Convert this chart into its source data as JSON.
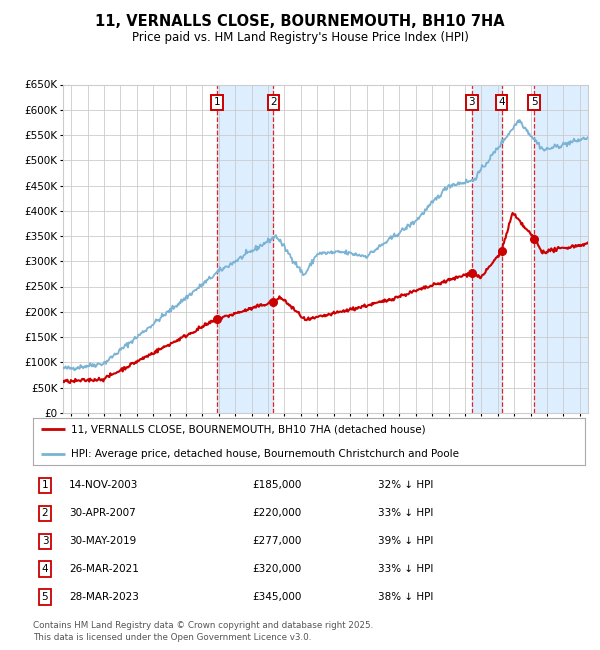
{
  "title": "11, VERNALLS CLOSE, BOURNEMOUTH, BH10 7HA",
  "subtitle": "Price paid vs. HM Land Registry's House Price Index (HPI)",
  "ylim": [
    0,
    650000
  ],
  "yticks": [
    0,
    50000,
    100000,
    150000,
    200000,
    250000,
    300000,
    350000,
    400000,
    450000,
    500000,
    550000,
    600000,
    650000
  ],
  "hpi_color": "#7ab3d4",
  "price_color": "#cc0000",
  "grid_color": "#cccccc",
  "bg_color": "#ffffff",
  "highlight_bg": "#ddeeff",
  "hatch_color": "#c0d0e0",
  "sale_events": [
    {
      "num": 1,
      "date": "14-NOV-2003",
      "price": 185000,
      "pct": "32%",
      "x_year": 2003.87
    },
    {
      "num": 2,
      "date": "30-APR-2007",
      "price": 220000,
      "pct": "33%",
      "x_year": 2007.33
    },
    {
      "num": 3,
      "date": "30-MAY-2019",
      "price": 277000,
      "pct": "39%",
      "x_year": 2019.41
    },
    {
      "num": 4,
      "date": "26-MAR-2021",
      "price": 320000,
      "pct": "33%",
      "x_year": 2021.23
    },
    {
      "num": 5,
      "date": "28-MAR-2023",
      "price": 345000,
      "pct": "38%",
      "x_year": 2023.23
    }
  ],
  "legend_line1": "11, VERNALLS CLOSE, BOURNEMOUTH, BH10 7HA (detached house)",
  "legend_line2": "HPI: Average price, detached house, Bournemouth Christchurch and Poole",
  "footnote": "Contains HM Land Registry data © Crown copyright and database right 2025.\nThis data is licensed under the Open Government Licence v3.0.",
  "table_rows": [
    {
      "num": 1,
      "date": "14-NOV-2003",
      "price": "£185,000",
      "pct": "32% ↓ HPI"
    },
    {
      "num": 2,
      "date": "30-APR-2007",
      "price": "£220,000",
      "pct": "33% ↓ HPI"
    },
    {
      "num": 3,
      "date": "30-MAY-2019",
      "price": "£277,000",
      "pct": "39% ↓ HPI"
    },
    {
      "num": 4,
      "date": "26-MAR-2021",
      "price": "£320,000",
      "pct": "33% ↓ HPI"
    },
    {
      "num": 5,
      "date": "28-MAR-2023",
      "price": "£345,000",
      "pct": "38% ↓ HPI"
    }
  ],
  "xlim": [
    1994.5,
    2026.5
  ],
  "xtick_start": 1995,
  "xtick_end": 2026
}
